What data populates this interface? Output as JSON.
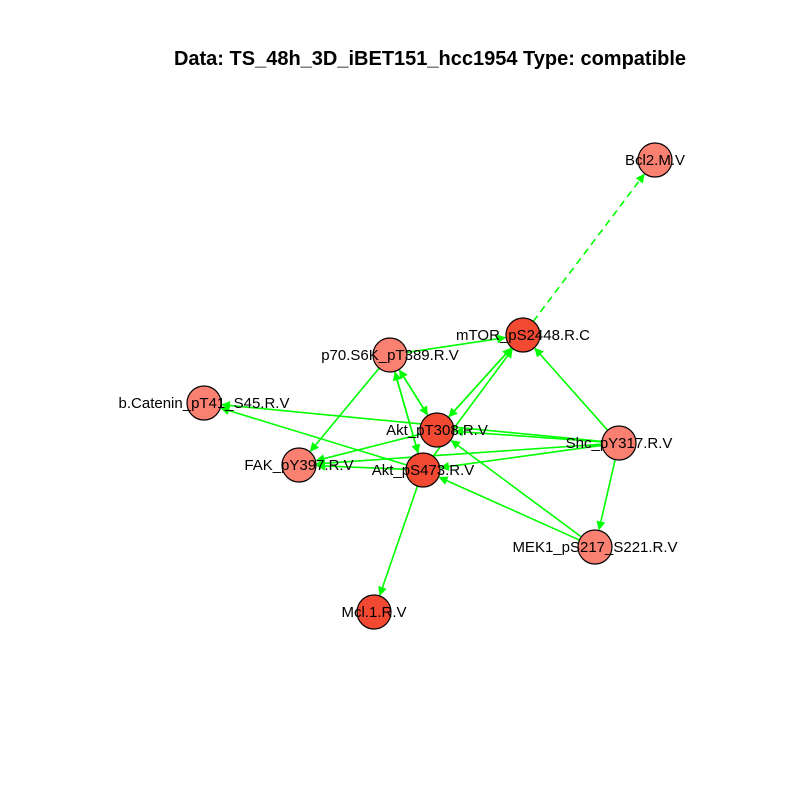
{
  "title": "Data: TS_48h_3D_iBET151_hcc1954 Type: compatible",
  "colors": {
    "edge": "#00ff00",
    "node_stroke": "#000000",
    "node_light": "#fa8072",
    "node_mid": "#f8725f",
    "node_dark": "#f24a32"
  },
  "nodes": [
    {
      "id": "Bcl2",
      "label": "Bcl2.M.V",
      "fill": "node_light"
    },
    {
      "id": "mTOR",
      "label": "mTOR_pS2448.R.C",
      "fill": "node_dark"
    },
    {
      "id": "p70",
      "label": "p70.S6K_pT389.R.V",
      "fill": "node_light"
    },
    {
      "id": "bCat",
      "label": "b.Catenin_pT41_S45.R.V",
      "fill": "node_light"
    },
    {
      "id": "AktT",
      "label": "Akt_pT308.R.V",
      "fill": "node_dark"
    },
    {
      "id": "Shc",
      "label": "Shc_pY317.R.V",
      "fill": "node_light"
    },
    {
      "id": "FAK",
      "label": "FAK_pY397.R.V",
      "fill": "node_light"
    },
    {
      "id": "AktS",
      "label": "Akt_pS473.R.V",
      "fill": "node_dark"
    },
    {
      "id": "MEK1",
      "label": "MEK1_pS217_S221.R.V",
      "fill": "node_light"
    },
    {
      "id": "Mcl1",
      "label": "Mcl.1.R.V",
      "fill": "node_dark"
    }
  ],
  "edges": [
    {
      "from": "mTOR",
      "to": "Bcl2",
      "dashed": true
    },
    {
      "from": "p70",
      "to": "mTOR",
      "dashed": false
    },
    {
      "from": "p70",
      "to": "FAK",
      "dashed": false
    },
    {
      "from": "p70",
      "to": "AktT",
      "dashed": false
    },
    {
      "from": "p70",
      "to": "AktS",
      "dashed": false
    },
    {
      "from": "AktT",
      "to": "p70",
      "dashed": false
    },
    {
      "from": "AktS",
      "to": "p70",
      "dashed": false
    },
    {
      "from": "AktT",
      "to": "mTOR",
      "dashed": false
    },
    {
      "from": "mTOR",
      "to": "AktT",
      "dashed": false
    },
    {
      "from": "AktS",
      "to": "mTOR",
      "dashed": false
    },
    {
      "from": "Shc",
      "to": "mTOR",
      "dashed": false
    },
    {
      "from": "Shc",
      "to": "bCat",
      "dashed": false
    },
    {
      "from": "Shc",
      "to": "AktT",
      "dashed": false
    },
    {
      "from": "Shc",
      "to": "AktS",
      "dashed": false
    },
    {
      "from": "Shc",
      "to": "FAK",
      "dashed": false
    },
    {
      "from": "Shc",
      "to": "MEK1",
      "dashed": false
    },
    {
      "from": "AktS",
      "to": "bCat",
      "dashed": false
    },
    {
      "from": "AktS",
      "to": "FAK",
      "dashed": false
    },
    {
      "from": "AktS",
      "to": "Mcl1",
      "dashed": false
    },
    {
      "from": "AktT",
      "to": "FAK",
      "dashed": false
    },
    {
      "from": "MEK1",
      "to": "AktT",
      "dashed": false
    },
    {
      "from": "MEK1",
      "to": "AktS",
      "dashed": false
    }
  ]
}
